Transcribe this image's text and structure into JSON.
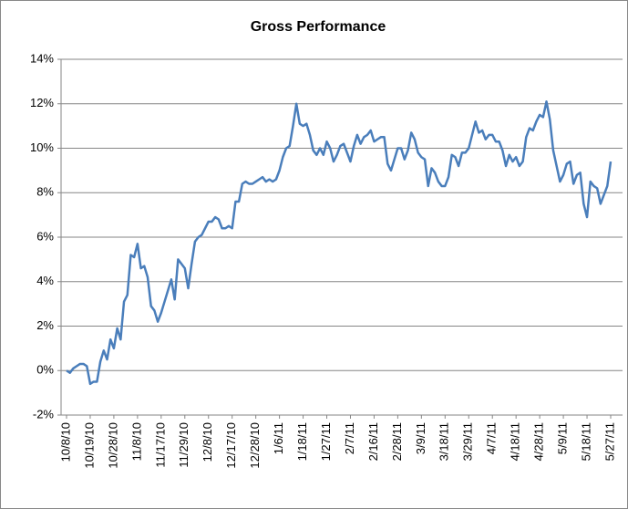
{
  "chart_data": {
    "type": "line",
    "title": "Gross Performance",
    "categories": [
      "10/8/10",
      null,
      null,
      null,
      null,
      null,
      null,
      "10/19/10",
      null,
      null,
      null,
      null,
      null,
      null,
      "10/28/10",
      null,
      null,
      null,
      null,
      null,
      null,
      "11/8/10",
      null,
      null,
      null,
      null,
      null,
      null,
      "11/17/10",
      null,
      null,
      null,
      null,
      null,
      null,
      "11/29/10",
      null,
      null,
      null,
      null,
      null,
      null,
      "12/8/10",
      null,
      null,
      null,
      null,
      null,
      null,
      "12/17/10",
      null,
      null,
      null,
      null,
      null,
      null,
      "12/28/10",
      null,
      null,
      null,
      null,
      null,
      null,
      "1/6/11",
      null,
      null,
      null,
      null,
      null,
      null,
      "1/18/11",
      null,
      null,
      null,
      null,
      null,
      null,
      "1/27/11",
      null,
      null,
      null,
      null,
      null,
      null,
      "2/7/11",
      null,
      null,
      null,
      null,
      null,
      null,
      "2/16/11",
      null,
      null,
      null,
      null,
      null,
      null,
      "2/28/11",
      null,
      null,
      null,
      null,
      null,
      null,
      "3/9/11",
      null,
      null,
      null,
      null,
      null,
      null,
      "3/18/11",
      null,
      null,
      null,
      null,
      null,
      null,
      "3/29/11",
      null,
      null,
      null,
      null,
      null,
      null,
      "4/7/11",
      null,
      null,
      null,
      null,
      null,
      null,
      "4/18/11",
      null,
      null,
      null,
      null,
      null,
      null,
      "4/28/11",
      null,
      null,
      null,
      null,
      null,
      null,
      "5/9/11",
      null,
      null,
      null,
      null,
      null,
      null,
      "5/18/11",
      null,
      null,
      null,
      null,
      null,
      null,
      "5/27/11"
    ],
    "series": [
      {
        "color": "#4a7ebb",
        "values": [
          0.0,
          -0.1,
          0.1,
          0.2,
          0.3,
          0.3,
          0.2,
          -0.6,
          -0.5,
          -0.5,
          0.4,
          0.9,
          0.5,
          1.4,
          1.0,
          1.9,
          1.4,
          3.1,
          3.4,
          5.2,
          5.1,
          5.7,
          4.6,
          4.7,
          4.2,
          2.9,
          2.7,
          2.2,
          2.6,
          3.1,
          3.6,
          4.1,
          3.2,
          5.0,
          4.8,
          4.6,
          3.7,
          4.8,
          5.8,
          6.0,
          6.1,
          6.4,
          6.7,
          6.7,
          6.9,
          6.8,
          6.4,
          6.4,
          6.5,
          6.4,
          7.6,
          7.6,
          8.4,
          8.5,
          8.4,
          8.4,
          8.5,
          8.6,
          8.7,
          8.5,
          8.6,
          8.5,
          8.6,
          9.0,
          9.6,
          10.0,
          10.1,
          11.0,
          12.0,
          11.1,
          11.0,
          11.1,
          10.6,
          9.9,
          9.7,
          10.0,
          9.7,
          10.3,
          10.0,
          9.4,
          9.7,
          10.1,
          10.2,
          9.8,
          9.4,
          10.1,
          10.6,
          10.2,
          10.5,
          10.6,
          10.8,
          10.3,
          10.4,
          10.5,
          10.5,
          9.3,
          9.0,
          9.5,
          10.0,
          10.0,
          9.5,
          9.9,
          10.7,
          10.4,
          9.8,
          9.6,
          9.5,
          8.3,
          9.1,
          8.9,
          8.5,
          8.3,
          8.3,
          8.7,
          9.7,
          9.6,
          9.2,
          9.8,
          9.8,
          10.0,
          10.6,
          11.2,
          10.7,
          10.8,
          10.4,
          10.6,
          10.6,
          10.3,
          10.3,
          9.9,
          9.2,
          9.7,
          9.4,
          9.6,
          9.2,
          9.4,
          10.5,
          10.9,
          10.8,
          11.2,
          11.5,
          11.4,
          12.1,
          11.3,
          9.9,
          9.2,
          8.5,
          8.8,
          9.3,
          9.4,
          8.4,
          8.8,
          8.9,
          7.5,
          6.9,
          8.5,
          8.3,
          8.2,
          7.5,
          7.9,
          8.3,
          9.4
        ]
      }
    ],
    "ylim": [
      -2,
      14
    ],
    "yticks": [
      {
        "value": -2,
        "label": "-2%"
      },
      {
        "value": 0,
        "label": "0%"
      },
      {
        "value": 2,
        "label": "2%"
      },
      {
        "value": 4,
        "label": "4%"
      },
      {
        "value": 6,
        "label": "6%"
      },
      {
        "value": 8,
        "label": "8%"
      },
      {
        "value": 10,
        "label": "10%"
      },
      {
        "value": 12,
        "label": "12%"
      },
      {
        "value": 14,
        "label": "14%"
      }
    ],
    "grid": true
  }
}
